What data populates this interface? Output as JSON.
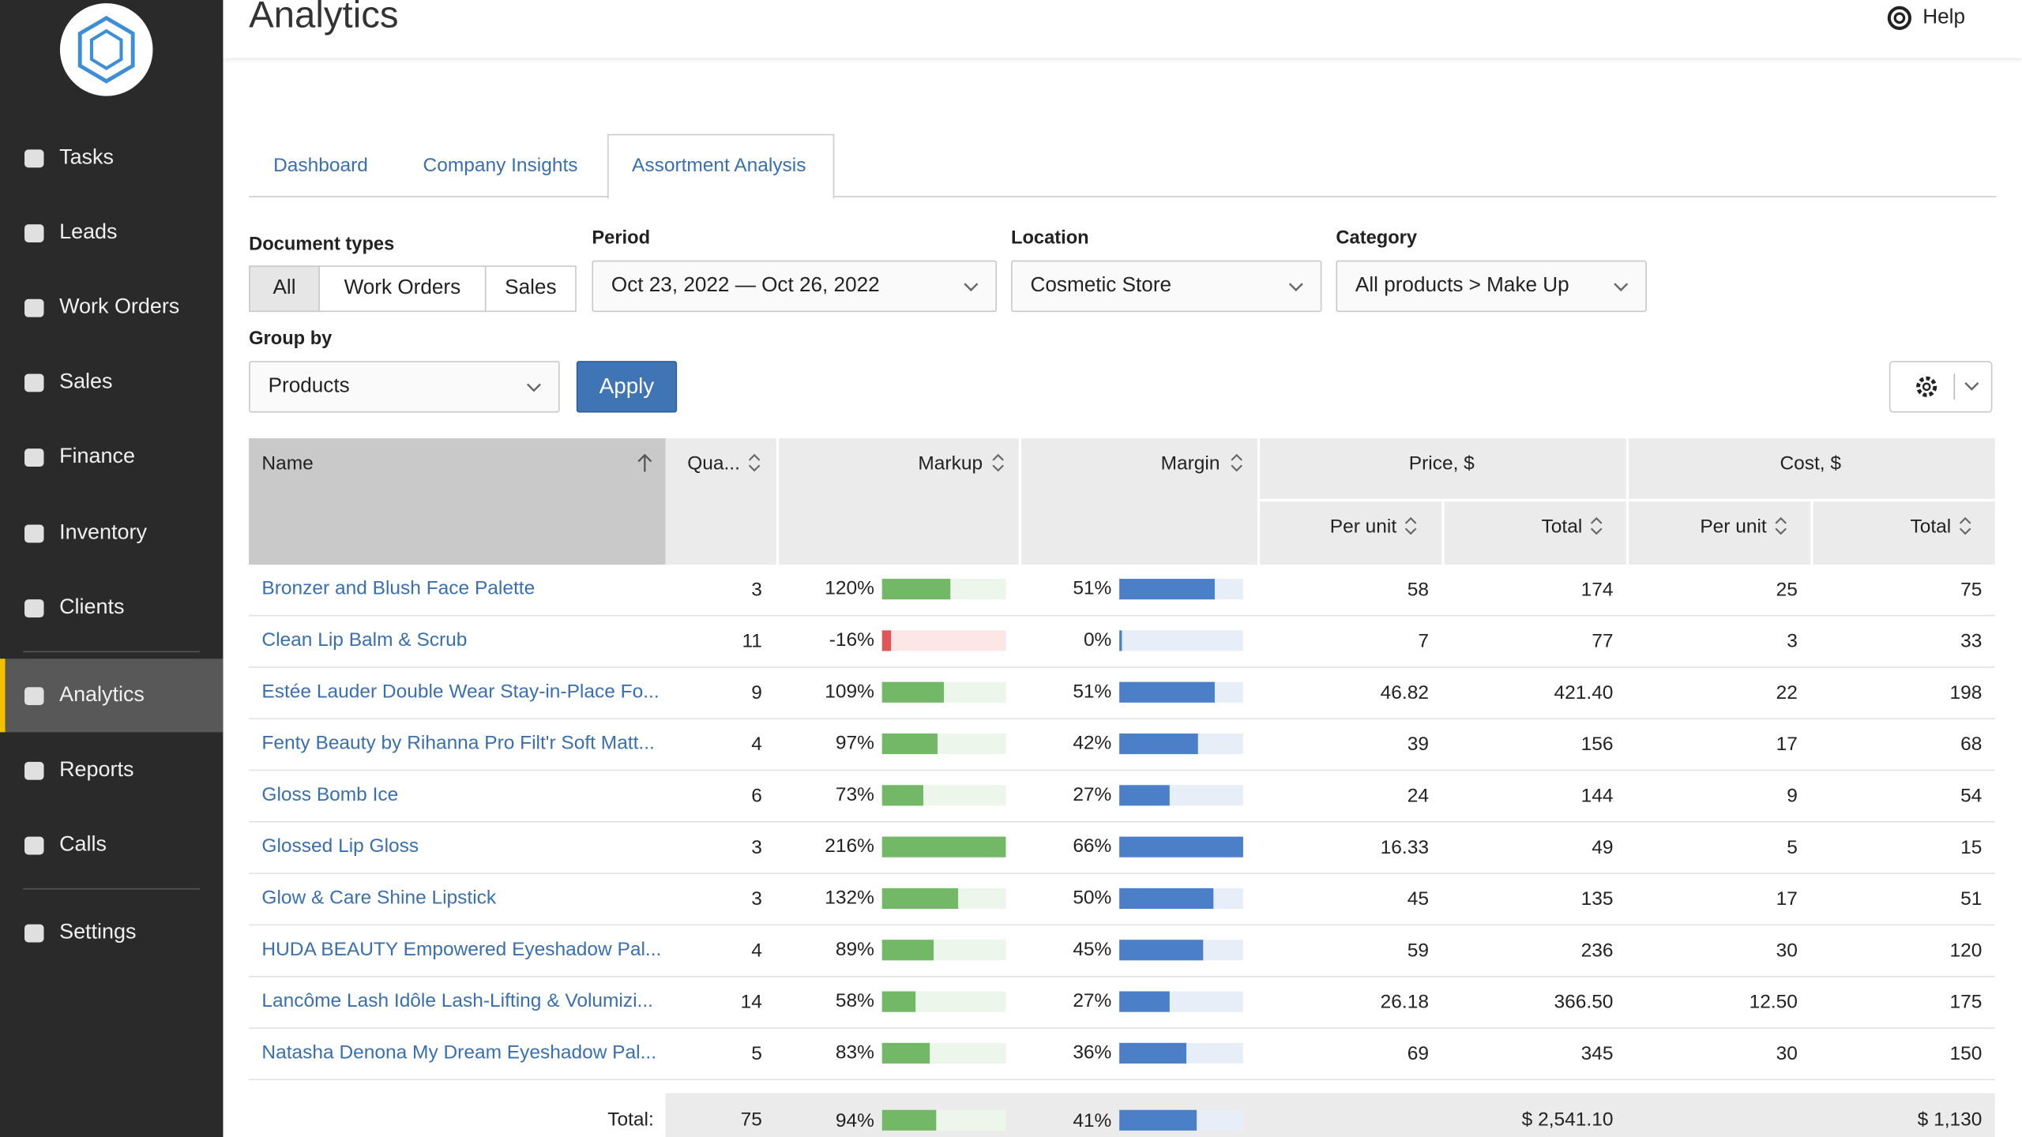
{
  "sidebar": {
    "nav": [
      "Tasks",
      "Leads",
      "Work Orders",
      "Sales",
      "Finance",
      "Inventory",
      "Clients",
      "Analytics",
      "Reports",
      "Calls",
      "Settings"
    ],
    "active": 7
  },
  "header": {
    "title": "Analytics",
    "help": "Help"
  },
  "tabs": {
    "items": [
      "Dashboard",
      "Company Insights",
      "Assortment Analysis"
    ],
    "active": 2
  },
  "filters": {
    "document_types": {
      "label": "Document types",
      "options": [
        "All",
        "Work Orders",
        "Sales"
      ]
    },
    "period": {
      "label": "Period",
      "value": "Oct 23, 2022 — Oct 26, 2022"
    },
    "location": {
      "label": "Location",
      "value": "Cosmetic Store"
    },
    "category": {
      "label": "Category",
      "value": "All products > Make Up"
    },
    "group_by": {
      "label": "Group by",
      "value": "Products"
    },
    "apply": "Apply"
  },
  "table": {
    "columns": {
      "name": "Name",
      "quantity": "Qua...",
      "markup": "Markup",
      "margin": "Margin",
      "price": "Price, $",
      "cost": "Cost, $",
      "per_unit": "Per unit",
      "total": "Total"
    },
    "rows": [
      {
        "name": "Bronzer and Blush Face Palette",
        "quantity": "3",
        "markup": 120,
        "markup_label": "120%",
        "margin": 51,
        "margin_label": "51%",
        "price_unit": "58",
        "price_total": "174",
        "cost_unit": "25",
        "cost_total": "75"
      },
      {
        "name": "Clean Lip Balm & Scrub",
        "quantity": "11",
        "markup": -16,
        "markup_label": "-16%",
        "margin": 0,
        "margin_label": "0%",
        "price_unit": "7",
        "price_total": "77",
        "cost_unit": "3",
        "cost_total": "33"
      },
      {
        "name": "Estée Lauder Double Wear Stay-in-Place Fo...",
        "quantity": "9",
        "markup": 109,
        "markup_label": "109%",
        "margin": 51,
        "margin_label": "51%",
        "price_unit": "46.82",
        "price_total": "421.40",
        "cost_unit": "22",
        "cost_total": "198"
      },
      {
        "name": "Fenty Beauty by Rihanna Pro Filt'r Soft Matt...",
        "quantity": "4",
        "markup": 97,
        "markup_label": "97%",
        "margin": 42,
        "margin_label": "42%",
        "price_unit": "39",
        "price_total": "156",
        "cost_unit": "17",
        "cost_total": "68"
      },
      {
        "name": "Gloss Bomb Ice",
        "quantity": "6",
        "markup": 73,
        "markup_label": "73%",
        "margin": 27,
        "margin_label": "27%",
        "price_unit": "24",
        "price_total": "144",
        "cost_unit": "9",
        "cost_total": "54"
      },
      {
        "name": "Glossed Lip Gloss",
        "quantity": "3",
        "markup": 216,
        "markup_label": "216%",
        "margin": 66,
        "margin_label": "66%",
        "price_unit": "16.33",
        "price_total": "49",
        "cost_unit": "5",
        "cost_total": "15"
      },
      {
        "name": "Glow & Care Shine Lipstick",
        "quantity": "3",
        "markup": 132,
        "markup_label": "132%",
        "margin": 50,
        "margin_label": "50%",
        "price_unit": "45",
        "price_total": "135",
        "cost_unit": "17",
        "cost_total": "51"
      },
      {
        "name": "HUDA BEAUTY Empowered Eyeshadow Pal...",
        "quantity": "4",
        "markup": 89,
        "markup_label": "89%",
        "margin": 45,
        "margin_label": "45%",
        "price_unit": "59",
        "price_total": "236",
        "cost_unit": "30",
        "cost_total": "120"
      },
      {
        "name": "Lancôme Lash Idôle Lash-Lifting & Volumizi...",
        "quantity": "14",
        "markup": 58,
        "markup_label": "58%",
        "margin": 27,
        "margin_label": "27%",
        "price_unit": "26.18",
        "price_total": "366.50",
        "cost_unit": "12.50",
        "cost_total": "175"
      },
      {
        "name": "Natasha Denona My Dream Eyeshadow Pal...",
        "quantity": "5",
        "markup": 83,
        "markup_label": "83%",
        "margin": 36,
        "margin_label": "36%",
        "price_unit": "69",
        "price_total": "345",
        "cost_unit": "30",
        "cost_total": "150"
      }
    ],
    "total": {
      "label": "Total:",
      "quantity": "75",
      "markup": 94,
      "markup_label": "94%",
      "margin": 41,
      "margin_label": "41%",
      "price_total": "$ 2,541.10",
      "cost_total": "$ 1,130"
    }
  }
}
